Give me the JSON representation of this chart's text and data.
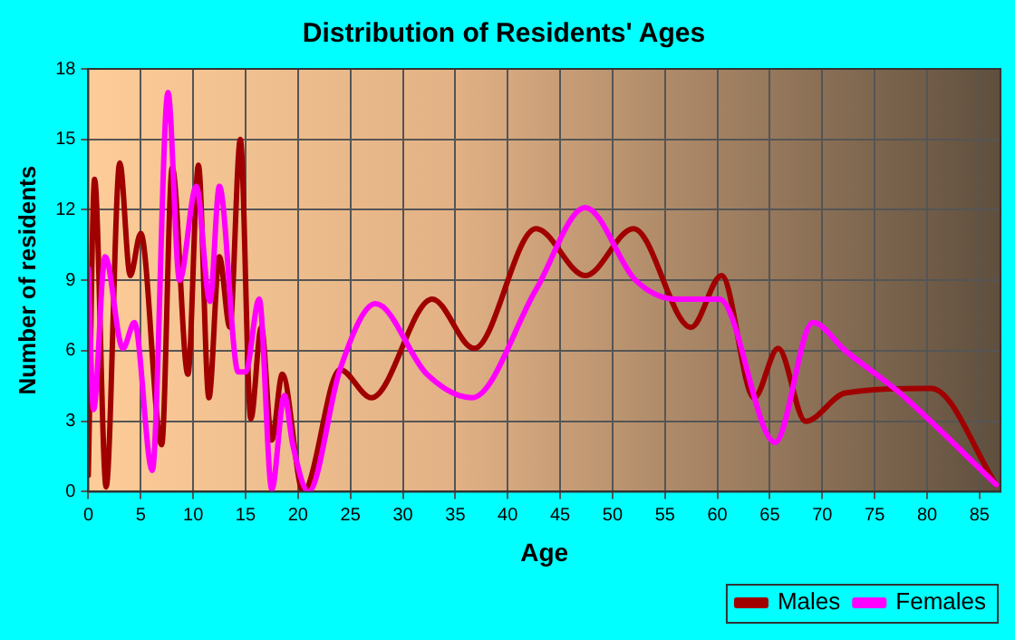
{
  "chart_data": {
    "type": "line",
    "title": "Distribution of Residents' Ages",
    "xlabel": "Age",
    "ylabel": "Number of residents",
    "xlim": [
      0,
      87
    ],
    "xticks": [
      0,
      5,
      10,
      15,
      20,
      25,
      30,
      35,
      40,
      45,
      50,
      55,
      60,
      65,
      70,
      75,
      80,
      85
    ],
    "ylim": [
      0,
      18
    ],
    "yticks": [
      0,
      3,
      6,
      9,
      12,
      15,
      18
    ],
    "grid": true,
    "legend": "bottom right",
    "marker": "none",
    "line_style": "solid",
    "series": [
      {
        "name": "Males",
        "color": "#a00000",
        "x": [
          0,
          0.6,
          1.7,
          3,
          4,
          5,
          7,
          8,
          9.5,
          10.5,
          11.5,
          12.5,
          13.5,
          14.5,
          15.5,
          16.5,
          17.5,
          18.5,
          20.5,
          24,
          27,
          32.8,
          36.8,
          42.7,
          47.4,
          52,
          57.5,
          60.4,
          63.5,
          65.8,
          68.4,
          72.2,
          80.4,
          86.6
        ],
        "values": [
          0.7,
          13.3,
          0.2,
          14,
          9.2,
          11,
          2,
          13.8,
          5,
          13.9,
          4,
          10,
          7,
          15,
          3.1,
          7,
          2.2,
          5,
          0,
          5.2,
          4,
          8.2,
          6.1,
          11.2,
          9.2,
          11.2,
          7,
          9.2,
          4,
          6.1,
          3,
          4.2,
          4.4,
          0.3
        ]
      },
      {
        "name": "Females",
        "color": "#ff00ff",
        "x": [
          0,
          0.5,
          1.6,
          3.3,
          4.4,
          6.1,
          7.6,
          8.7,
          10.3,
          11.6,
          12.5,
          14.3,
          15,
          16.3,
          17.5,
          18.7,
          19.5,
          21,
          24,
          27.4,
          32.3,
          36.6,
          42.7,
          47.4,
          52.2,
          56,
          60.2,
          65.5,
          69.1,
          72.2,
          77.4,
          86.6
        ],
        "values": [
          9.5,
          3.5,
          10,
          6.1,
          7.2,
          0.9,
          17,
          9,
          13,
          8.1,
          13,
          5.1,
          5.1,
          8.2,
          0.1,
          4.1,
          2,
          0,
          5.2,
          8,
          5,
          4,
          8.6,
          12.1,
          9,
          8.2,
          8.2,
          2.1,
          7.2,
          6,
          4.2,
          0.3
        ]
      }
    ]
  }
}
